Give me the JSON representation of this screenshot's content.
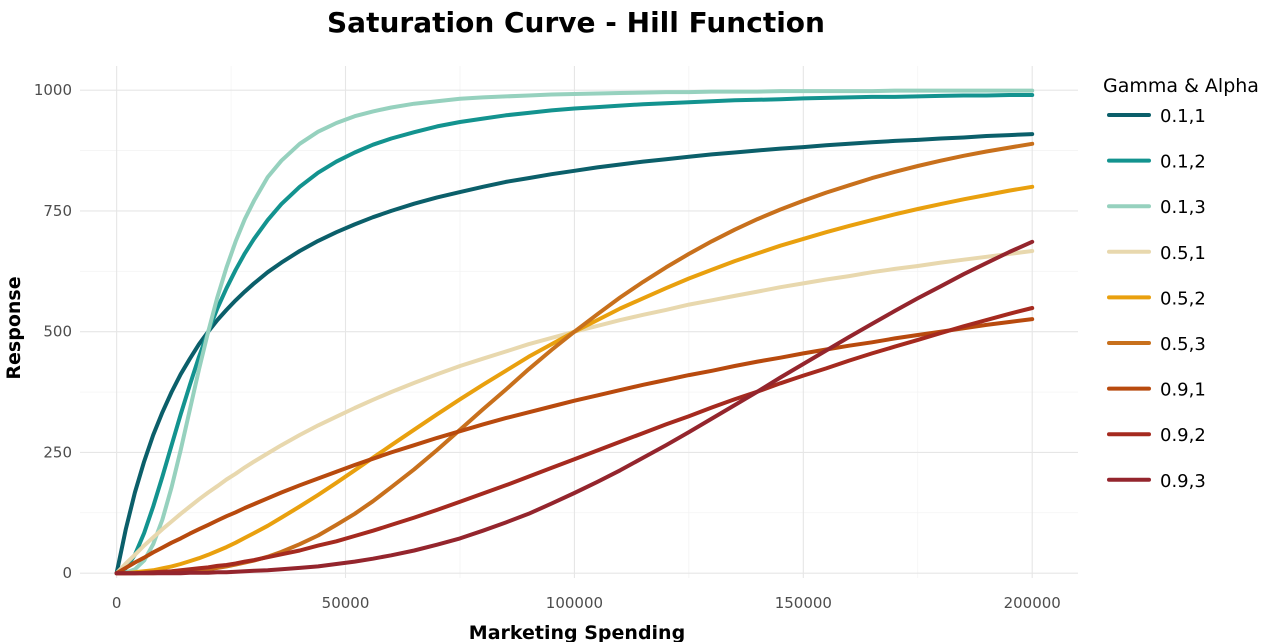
{
  "chart_data": {
    "type": "line",
    "title": "Saturation Curve - Hill Function",
    "xlabel": "Marketing Spending",
    "ylabel": "Response",
    "xlim": [
      -8000,
      210000
    ],
    "ylim": [
      -10,
      1050
    ],
    "x_ticks": [
      0,
      50000,
      100000,
      150000,
      200000
    ],
    "y_ticks": [
      0,
      250,
      500,
      750,
      1000
    ],
    "grid": true,
    "legend": {
      "title": "Gamma & Alpha",
      "position": "right"
    },
    "max_response": 1000,
    "x": [
      0,
      2000,
      4000,
      6000,
      8000,
      10000,
      12000,
      14000,
      16000,
      18000,
      20000,
      22000,
      24000,
      26000,
      28000,
      30000,
      33000,
      36000,
      40000,
      44000,
      48000,
      52000,
      56000,
      60000,
      65000,
      70000,
      75000,
      80000,
      85000,
      90000,
      95000,
      100000,
      105000,
      110000,
      115000,
      120000,
      125000,
      130000,
      135000,
      140000,
      145000,
      150000,
      155000,
      160000,
      165000,
      170000,
      175000,
      180000,
      185000,
      190000,
      195000,
      200000
    ],
    "series": [
      {
        "name": "0.1,1",
        "color": "#0b5f6a",
        "values": [
          0,
          91,
          167,
          231,
          286,
          333,
          375,
          412,
          444,
          474,
          500,
          524,
          545,
          565,
          583,
          600,
          623,
          643,
          667,
          688,
          706,
          722,
          737,
          750,
          765,
          778,
          789,
          800,
          810,
          818,
          826,
          833,
          840,
          846,
          852,
          857,
          862,
          867,
          871,
          875,
          879,
          882,
          886,
          889,
          892,
          895,
          897,
          900,
          902,
          905,
          907,
          909
        ]
      },
      {
        "name": "0.1,2",
        "color": "#13938f",
        "values": [
          0,
          10,
          38,
          83,
          138,
          200,
          265,
          329,
          390,
          448,
          500,
          548,
          590,
          628,
          662,
          692,
          731,
          764,
          800,
          829,
          852,
          871,
          887,
          900,
          913,
          925,
          934,
          941,
          948,
          953,
          958,
          962,
          965,
          968,
          971,
          973,
          975,
          977,
          979,
          980,
          981,
          983,
          984,
          985,
          986,
          986,
          987,
          988,
          989,
          989,
          990,
          990
        ]
      },
      {
        "name": "0.1,3",
        "color": "#96d1be",
        "values": [
          0,
          1,
          8,
          26,
          60,
          111,
          178,
          255,
          339,
          422,
          500,
          571,
          633,
          687,
          733,
          771,
          820,
          854,
          889,
          914,
          932,
          946,
          956,
          964,
          972,
          977,
          982,
          985,
          987,
          989,
          991,
          992,
          993,
          994,
          995,
          996,
          996,
          997,
          997,
          997,
          998,
          998,
          998,
          998,
          998,
          999,
          999,
          999,
          999,
          999,
          999,
          999
        ]
      },
      {
        "name": "0.5,1",
        "color": "#e8d8ae",
        "values": [
          0,
          20,
          38,
          57,
          74,
          91,
          107,
          123,
          138,
          153,
          167,
          180,
          194,
          206,
          219,
          231,
          248,
          265,
          286,
          306,
          324,
          342,
          359,
          375,
          394,
          412,
          429,
          444,
          459,
          474,
          487,
          500,
          512,
          524,
          535,
          545,
          556,
          565,
          574,
          583,
          592,
          600,
          608,
          615,
          623,
          630,
          636,
          643,
          649,
          655,
          661,
          667
        ]
      },
      {
        "name": "0.5,2",
        "color": "#e9a00e",
        "values": [
          0,
          0,
          2,
          4,
          6,
          10,
          14,
          19,
          25,
          31,
          38,
          46,
          54,
          63,
          73,
          83,
          98,
          115,
          138,
          162,
          187,
          213,
          239,
          265,
          297,
          329,
          360,
          390,
          419,
          448,
          474,
          500,
          524,
          548,
          569,
          590,
          610,
          628,
          646,
          662,
          678,
          692,
          706,
          719,
          731,
          743,
          754,
          764,
          774,
          783,
          792,
          800
        ]
      },
      {
        "name": "0.5,3",
        "color": "#c8701c",
        "values": [
          0,
          0,
          0,
          0,
          0,
          1,
          2,
          3,
          4,
          6,
          8,
          11,
          14,
          18,
          22,
          26,
          34,
          44,
          60,
          78,
          100,
          123,
          149,
          178,
          215,
          255,
          297,
          339,
          380,
          422,
          462,
          500,
          536,
          571,
          603,
          633,
          661,
          687,
          711,
          733,
          753,
          771,
          788,
          803,
          818,
          831,
          843,
          854,
          864,
          873,
          881,
          889
        ]
      },
      {
        "name": "0.9,1",
        "color": "#b84a0e",
        "values": [
          0,
          11,
          22,
          32,
          43,
          53,
          63,
          72,
          82,
          91,
          100,
          109,
          118,
          126,
          135,
          143,
          155,
          167,
          182,
          196,
          210,
          224,
          237,
          250,
          265,
          280,
          294,
          308,
          321,
          333,
          345,
          357,
          368,
          379,
          390,
          400,
          410,
          419,
          429,
          438,
          446,
          455,
          463,
          471,
          478,
          486,
          493,
          500,
          507,
          514,
          520,
          526
        ]
      },
      {
        "name": "0.9,2",
        "color": "#a52a1f",
        "values": [
          0,
          0,
          0,
          1,
          2,
          3,
          4,
          6,
          8,
          10,
          12,
          15,
          17,
          20,
          24,
          27,
          33,
          39,
          47,
          57,
          66,
          77,
          88,
          100,
          115,
          131,
          148,
          165,
          182,
          200,
          218,
          236,
          254,
          272,
          290,
          308,
          325,
          343,
          360,
          376,
          393,
          409,
          424,
          440,
          455,
          469,
          483,
          497,
          511,
          524,
          537,
          549
        ]
      },
      {
        "name": "0.9,3",
        "color": "#94252d",
        "values": [
          0,
          0,
          0,
          0,
          0,
          0,
          0,
          0,
          1,
          1,
          1,
          2,
          2,
          3,
          4,
          5,
          6,
          8,
          11,
          14,
          19,
          24,
          30,
          37,
          47,
          59,
          72,
          88,
          105,
          123,
          144,
          166,
          189,
          213,
          239,
          265,
          292,
          320,
          348,
          376,
          405,
          433,
          461,
          489,
          516,
          543,
          569,
          594,
          619,
          642,
          665,
          686
        ]
      }
    ]
  }
}
